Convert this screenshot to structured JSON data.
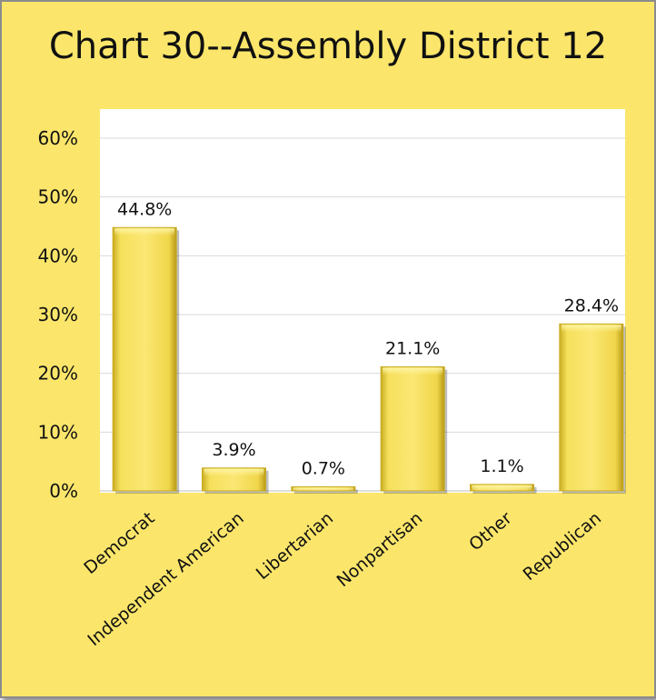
{
  "chart_data": {
    "type": "bar",
    "title": "Chart 30--Assembly District 12",
    "categories": [
      "Democrat",
      "Independent American",
      "Libertarian",
      "Nonpartisan",
      "Other",
      "Republican"
    ],
    "values": [
      44.8,
      3.9,
      0.7,
      21.1,
      1.1,
      28.4
    ],
    "data_labels": [
      "44.8%",
      "3.9%",
      "0.7%",
      "21.1%",
      "1.1%",
      "28.4%"
    ],
    "ylim": [
      0,
      60
    ],
    "yticks": [
      0,
      10,
      20,
      30,
      40,
      50,
      60
    ],
    "ytick_labels": [
      "0%",
      "10%",
      "20%",
      "30%",
      "40%",
      "50%",
      "60%"
    ],
    "grid": true,
    "legend": "none",
    "colors": {
      "background": "#fbe66b",
      "plot_area": "#ffffff",
      "bar_fill": "#f3da4e",
      "bar_edge": "#c8ab1f",
      "gridline": "#d9d9d9"
    }
  }
}
